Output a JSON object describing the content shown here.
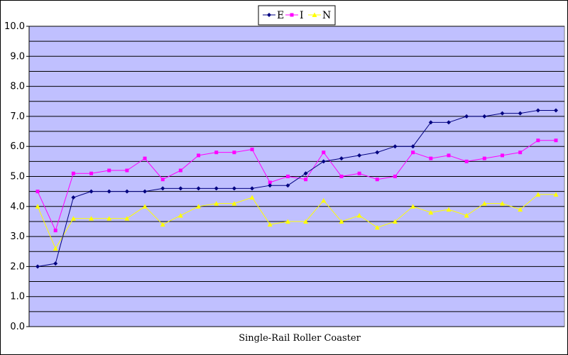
{
  "chart_data": {
    "type": "line",
    "title": "",
    "xlabel": "Single-Rail Roller Coaster",
    "ylabel": "",
    "ylim": [
      0,
      10
    ],
    "yticks": [
      "0.0",
      "1.0",
      "2.0",
      "3.0",
      "4.0",
      "5.0",
      "6.0",
      "7.0",
      "8.0",
      "9.0",
      "10.0"
    ],
    "grid": true,
    "plot_background": "#c0c0ff",
    "legend_position": "top",
    "series": [
      {
        "name": "E",
        "color": "#000080",
        "marker": "diamond",
        "values": [
          2.0,
          2.1,
          4.3,
          4.5,
          4.5,
          4.5,
          4.5,
          4.6,
          4.6,
          4.6,
          4.6,
          4.6,
          4.6,
          4.7,
          4.7,
          5.1,
          5.5,
          5.6,
          5.7,
          5.8,
          6.0,
          6.0,
          6.8,
          6.8,
          7.0,
          7.0,
          7.1,
          7.1,
          7.2,
          7.2
        ]
      },
      {
        "name": "I",
        "color": "#ff00ff",
        "marker": "square",
        "values": [
          4.5,
          3.2,
          5.1,
          5.1,
          5.2,
          5.2,
          5.6,
          4.9,
          5.2,
          5.7,
          5.8,
          5.8,
          5.9,
          4.8,
          5.0,
          4.9,
          5.8,
          5.0,
          5.1,
          4.9,
          5.0,
          5.8,
          5.6,
          5.7,
          5.5,
          5.6,
          5.7,
          5.8,
          6.2,
          6.2
        ]
      },
      {
        "name": "N",
        "color": "#ffff00",
        "marker": "triangle",
        "values": [
          4.0,
          2.6,
          3.6,
          3.6,
          3.6,
          3.6,
          4.0,
          3.4,
          3.7,
          4.0,
          4.1,
          4.1,
          4.3,
          3.4,
          3.5,
          3.5,
          4.2,
          3.5,
          3.7,
          3.3,
          3.5,
          4.0,
          3.8,
          3.9,
          3.7,
          4.1,
          4.1,
          3.9,
          4.4,
          4.4
        ]
      }
    ]
  }
}
